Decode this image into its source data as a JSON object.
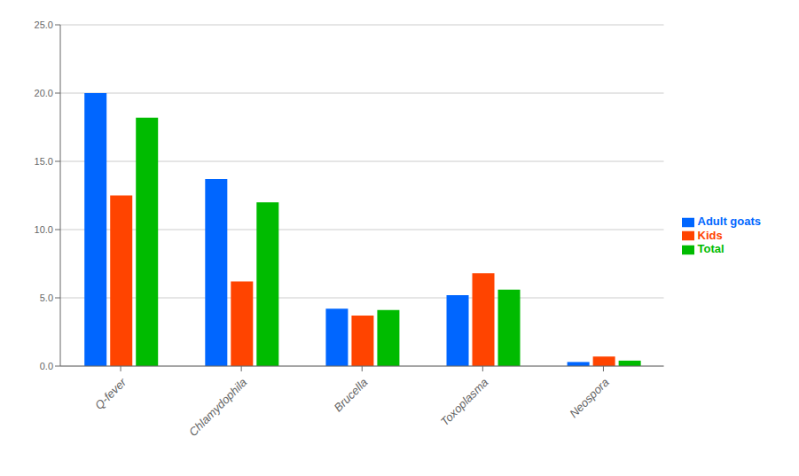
{
  "chart_data": {
    "type": "bar",
    "categories": [
      "Q-fever",
      "Chlamydophila",
      "Brucella",
      "Toxoplasma",
      "Neospora"
    ],
    "series": [
      {
        "name": "Adult goats",
        "color": "#0066FF",
        "values": [
          20.0,
          13.7,
          4.2,
          5.2,
          0.3
        ]
      },
      {
        "name": "Kids",
        "color": "#FF4400",
        "values": [
          12.5,
          6.2,
          3.7,
          6.8,
          0.7
        ]
      },
      {
        "name": "Total",
        "color": "#00BB00",
        "values": [
          18.2,
          12.0,
          4.1,
          5.6,
          0.4
        ]
      }
    ],
    "ylim": [
      0,
      25.0
    ],
    "yticks": [
      {
        "value": 0,
        "label": "0.0"
      },
      {
        "value": 5,
        "label": "5.0"
      },
      {
        "value": 10,
        "label": "10.0"
      },
      {
        "value": 15,
        "label": "15.0"
      },
      {
        "value": 20,
        "label": "20.0"
      },
      {
        "value": 25,
        "label": "25.0"
      }
    ],
    "grid": true,
    "legend": "right"
  }
}
